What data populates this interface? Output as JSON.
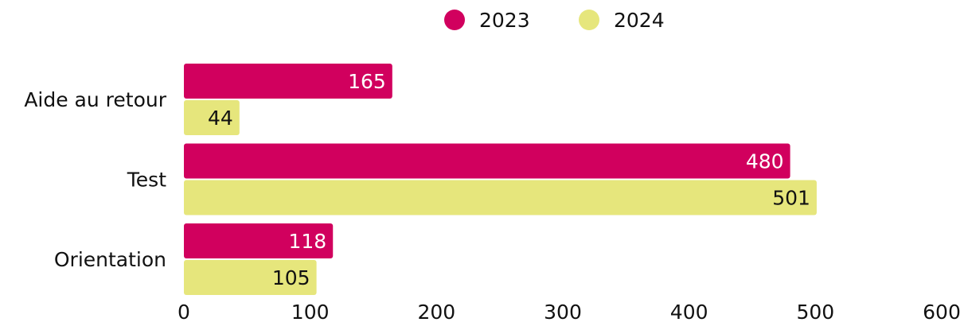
{
  "chart_data": {
    "type": "bar",
    "orientation": "horizontal",
    "categories": [
      "Aide au retour",
      "Test",
      "Orientation"
    ],
    "series": [
      {
        "name": "2023",
        "color": "#d1005e",
        "values": [
          165,
          480,
          118
        ]
      },
      {
        "name": "2024",
        "color": "#e6e67c",
        "values": [
          44,
          501,
          105
        ]
      }
    ],
    "xlim": [
      0,
      600
    ],
    "xticks": [
      0,
      100,
      200,
      300,
      400,
      500,
      600
    ],
    "grid": false,
    "legend": "top"
  }
}
